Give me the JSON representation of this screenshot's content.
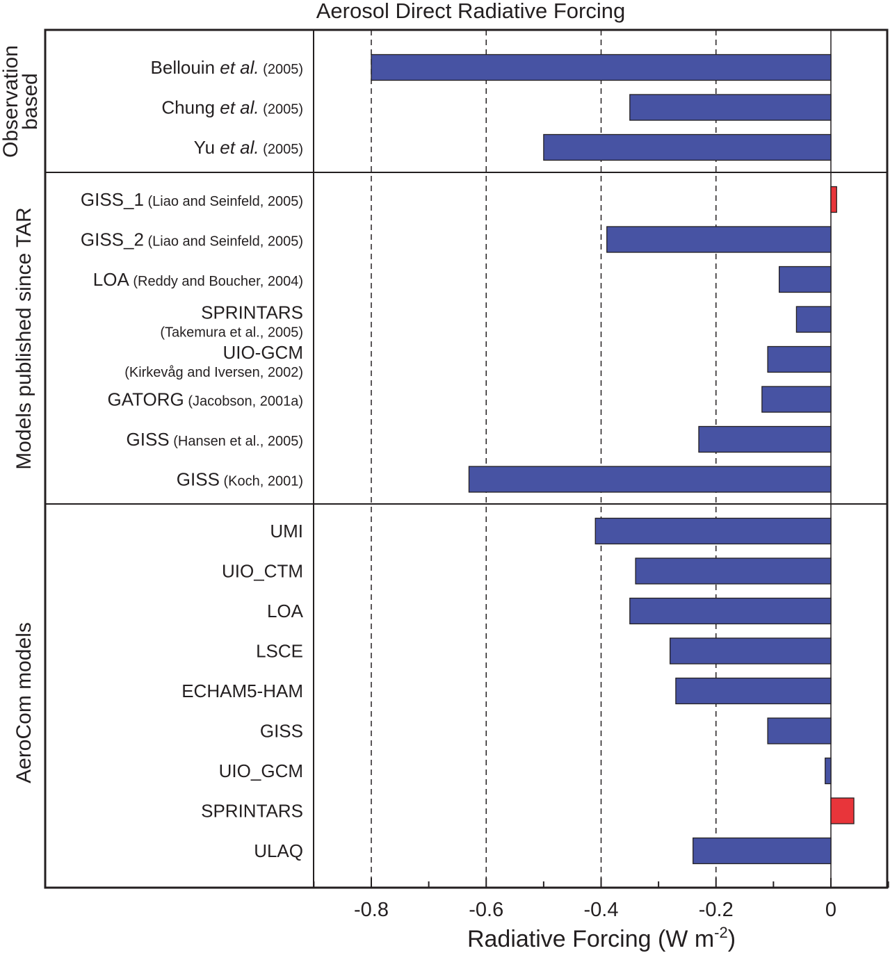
{
  "chart_data": {
    "type": "bar",
    "orientation": "horizontal",
    "title": "Aerosol Direct Radiative Forcing",
    "xlabel": "Radiative Forcing  (W m",
    "xlabel_superscript": "-2",
    "xlabel_close": ")",
    "xlim": [
      -0.9,
      0.1
    ],
    "xticks": [
      -0.8,
      -0.6,
      -0.4,
      -0.2,
      0
    ],
    "xtick_labels": [
      "-0.8",
      "-0.6",
      "-0.4",
      "-0.2",
      "0"
    ],
    "gridlines": "dashed vertical at major ticks",
    "colors": {
      "negative": "#4753a3",
      "positive": "#e8353a"
    },
    "groups": [
      {
        "name": "Observation based",
        "name_lines": [
          "Observation",
          "based"
        ],
        "items": [
          {
            "name": "Bellouin",
            "etal": "et al.",
            "ref": "(2005)",
            "value": -0.8
          },
          {
            "name": "Chung",
            "etal": "et al.",
            "ref": "(2005)",
            "value": -0.35
          },
          {
            "name": "Yu",
            "etal": "et al.",
            "ref": "(2005)",
            "value": -0.5
          }
        ]
      },
      {
        "name": "Models published since TAR",
        "name_lines": [
          "Models published since TAR"
        ],
        "items": [
          {
            "name": "GISS_1",
            "ref": "(Liao and Seinfeld, 2005)",
            "value": 0.01
          },
          {
            "name": "GISS_2",
            "ref": "(Liao and Seinfeld, 2005)",
            "value": -0.39
          },
          {
            "name": "LOA",
            "ref": "(Reddy and Boucher, 2004)",
            "value": -0.09
          },
          {
            "name": "SPRINTARS",
            "ref": "(Takemura et al., 2005)",
            "ref_below": true,
            "value": -0.06
          },
          {
            "name": "UIO-GCM",
            "ref": "(Kirkevåg and Iversen, 2002)",
            "ref_below": true,
            "value": -0.11
          },
          {
            "name": "GATORG",
            "ref": "(Jacobson, 2001a)",
            "value": -0.12
          },
          {
            "name": "GISS",
            "ref": "(Hansen et al., 2005)",
            "value": -0.23
          },
          {
            "name": "GISS",
            "ref": "(Koch, 2001)",
            "value": -0.63
          }
        ]
      },
      {
        "name": "AeroCom models",
        "name_lines": [
          "AeroCom models"
        ],
        "items": [
          {
            "name": "UMI",
            "value": -0.41
          },
          {
            "name": "UIO_CTM",
            "value": -0.34
          },
          {
            "name": "LOA",
            "value": -0.35
          },
          {
            "name": "LSCE",
            "value": -0.28
          },
          {
            "name": "ECHAM5-HAM",
            "value": -0.27
          },
          {
            "name": "GISS",
            "value": -0.11
          },
          {
            "name": "UIO_GCM",
            "value": -0.01
          },
          {
            "name": "SPRINTARS",
            "value": 0.04
          },
          {
            "name": "ULAQ",
            "value": -0.24
          }
        ]
      }
    ]
  }
}
